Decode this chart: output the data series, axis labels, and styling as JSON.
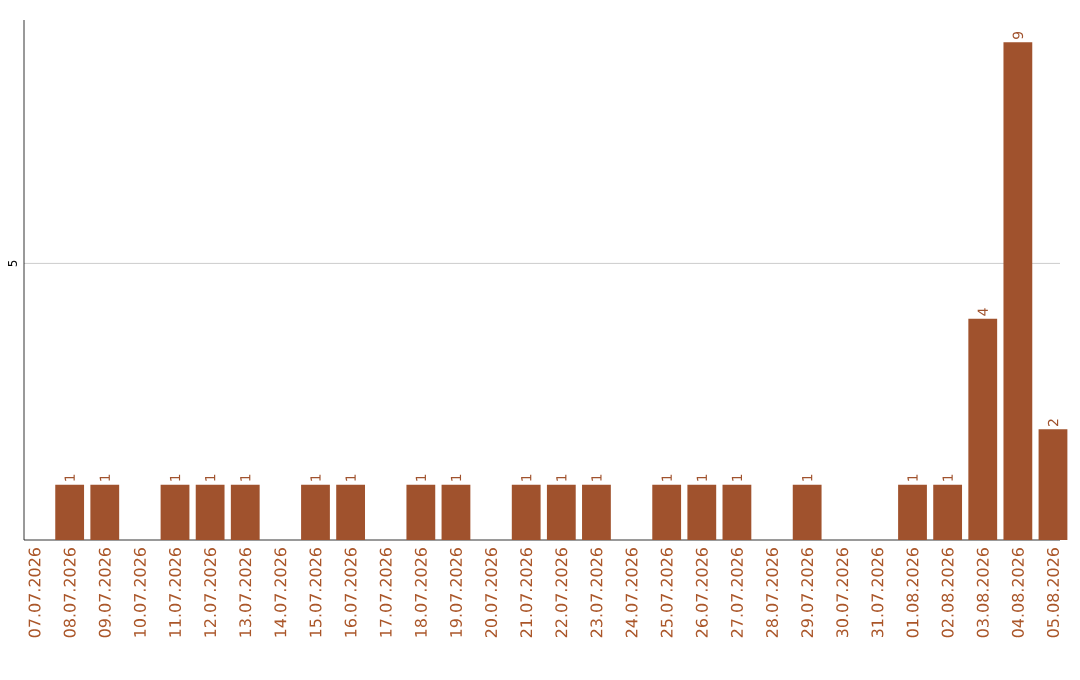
{
  "chart_data": {
    "type": "bar",
    "categories": [
      "07.07.2026",
      "08.07.2026",
      "09.07.2026",
      "10.07.2026",
      "11.07.2026",
      "12.07.2026",
      "13.07.2026",
      "14.07.2026",
      "15.07.2026",
      "16.07.2026",
      "17.07.2026",
      "18.07.2026",
      "19.07.2026",
      "20.07.2026",
      "21.07.2026",
      "22.07.2026",
      "23.07.2026",
      "24.07.2026",
      "25.07.2026",
      "26.07.2026",
      "27.07.2026",
      "28.07.2026",
      "29.07.2026",
      "30.07.2026",
      "31.07.2026",
      "01.08.2026",
      "02.08.2026",
      "03.08.2026",
      "04.08.2026",
      "05.08.2026"
    ],
    "values": [
      0,
      1,
      1,
      0,
      1,
      1,
      1,
      0,
      1,
      1,
      0,
      1,
      1,
      0,
      1,
      1,
      1,
      0,
      1,
      1,
      1,
      0,
      1,
      0,
      0,
      1,
      1,
      4,
      9,
      2
    ],
    "value_labels": [
      null,
      "1",
      "1",
      null,
      "1",
      "1",
      "1",
      null,
      "1",
      "1",
      null,
      "1",
      "1",
      null,
      "1",
      "1",
      "1",
      null,
      "1",
      "1",
      "1",
      null,
      "1",
      null,
      null,
      "1",
      "1",
      "4",
      "9",
      "2"
    ],
    "color": "#a0522d",
    "ylim": [
      0,
      9.4
    ],
    "yticks": [
      5
    ],
    "grid": "y"
  }
}
